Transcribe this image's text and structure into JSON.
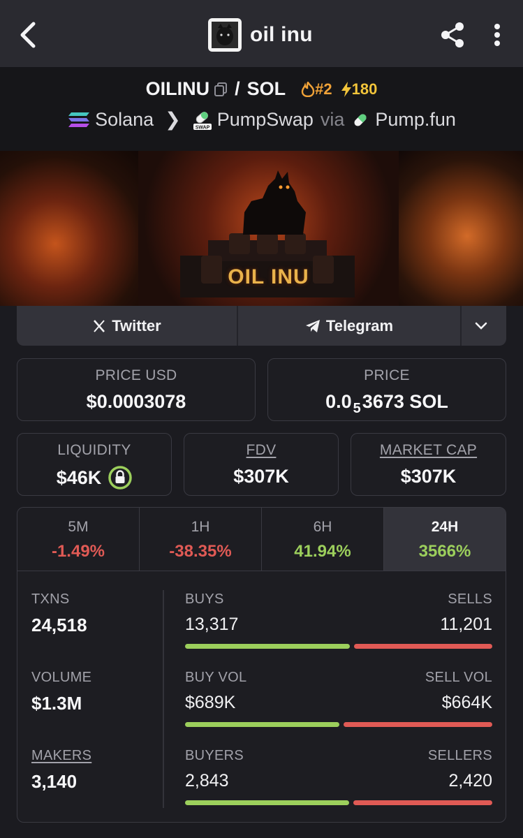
{
  "header": {
    "title": "oil inu",
    "back_icon": "chevron-left-icon",
    "share_icon": "share-icon",
    "more_icon": "more-vertical-icon"
  },
  "pair": {
    "base": "OILINU",
    "separator": "/",
    "quote": "SOL",
    "rank": "#2",
    "boosts": "180",
    "chain": "Solana",
    "dex": "PumpSwap",
    "via_label": "via",
    "launchpad": "Pump.fun"
  },
  "banner": {
    "logo_text": "OIL INU"
  },
  "socials": {
    "twitter": "Twitter",
    "telegram": "Telegram"
  },
  "stats": {
    "price_usd_label": "PRICE USD",
    "price_usd": "$0.0003078",
    "price_label": "PRICE",
    "price_prefix": "0.0",
    "price_zeros": "5",
    "price_suffix": "3673 SOL",
    "liquidity_label": "LIQUIDITY",
    "liquidity": "$46K",
    "fdv_label": "FDV",
    "fdv": "$307K",
    "mcap_label": "MARKET CAP",
    "mcap": "$307K"
  },
  "timeframes": [
    {
      "label": "5M",
      "change": "-1.49%"
    },
    {
      "label": "1H",
      "change": "-38.35%"
    },
    {
      "label": "6H",
      "change": "41.94%"
    },
    {
      "label": "24H",
      "change": "3566%"
    }
  ],
  "txn_stats": {
    "txns_label": "TXNS",
    "txns": "24,518",
    "volume_label": "VOLUME",
    "volume": "$1.3M",
    "makers_label": "MAKERS",
    "makers": "3,140",
    "buys_label": "BUYS",
    "buys": "13,317",
    "sells_label": "SELLS",
    "sells": "11,201",
    "buy_vol_label": "BUY VOL",
    "buy_vol": "$689K",
    "sell_vol_label": "SELL VOL",
    "sell_vol": "$664K",
    "buyers_label": "BUYERS",
    "buyers": "2,843",
    "sellers_label": "SELLERS",
    "sellers": "2,420",
    "buys_share": 0.543,
    "buy_vol_share": 0.509,
    "buyers_share": 0.54
  },
  "colors": {
    "positive": "#9ccf5c",
    "negative": "#e05a55",
    "rank": "#f0a238",
    "boost": "#f2c43a"
  }
}
